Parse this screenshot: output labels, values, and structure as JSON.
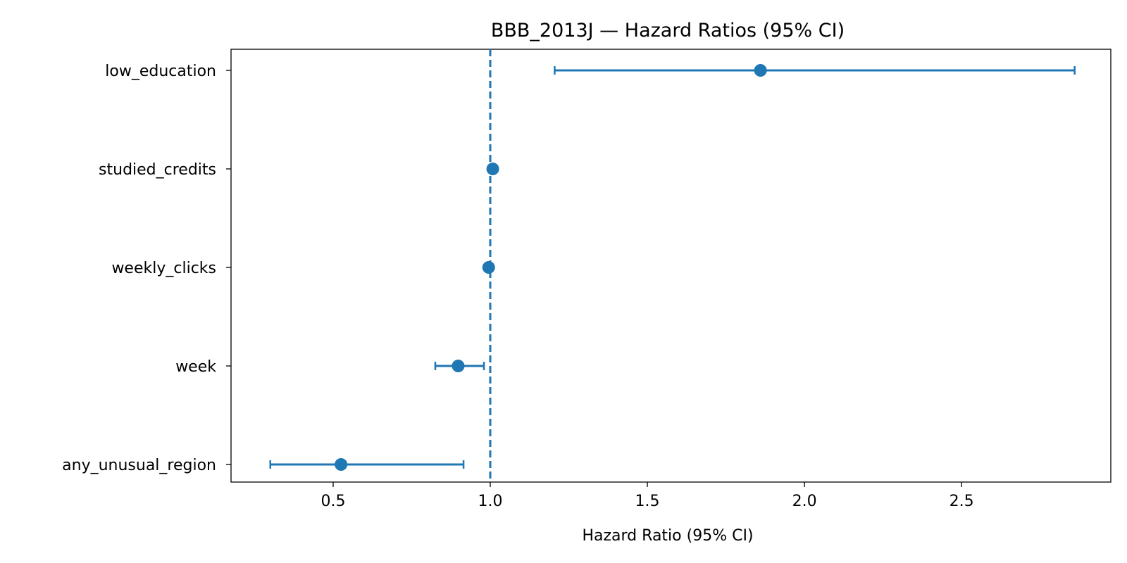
{
  "chart_data": {
    "type": "forest",
    "title": "BBB_2013J — Hazard Ratios (95% CI)",
    "xlabel": "Hazard Ratio (95% CI)",
    "ylabel": "",
    "xlim": [
      0.175,
      2.975
    ],
    "xticks": [
      0.5,
      1.0,
      1.5,
      2.0,
      2.5
    ],
    "xtick_labels": [
      "0.5",
      "1.0",
      "1.5",
      "2.0",
      "2.5"
    ],
    "reference_line": 1.0,
    "color": "#1f77b4",
    "rows": [
      {
        "label": "low_education",
        "hr": 1.86,
        "lower": 1.205,
        "upper": 2.86
      },
      {
        "label": "studied_credits",
        "hr": 1.008,
        "lower": 1.003,
        "upper": 1.013
      },
      {
        "label": "weekly_clicks",
        "hr": 0.995,
        "lower": 0.992,
        "upper": 0.998
      },
      {
        "label": "week",
        "hr": 0.898,
        "lower": 0.825,
        "upper": 0.98
      },
      {
        "label": "any_unusual_region",
        "hr": 0.525,
        "lower": 0.3,
        "upper": 0.915
      }
    ]
  }
}
